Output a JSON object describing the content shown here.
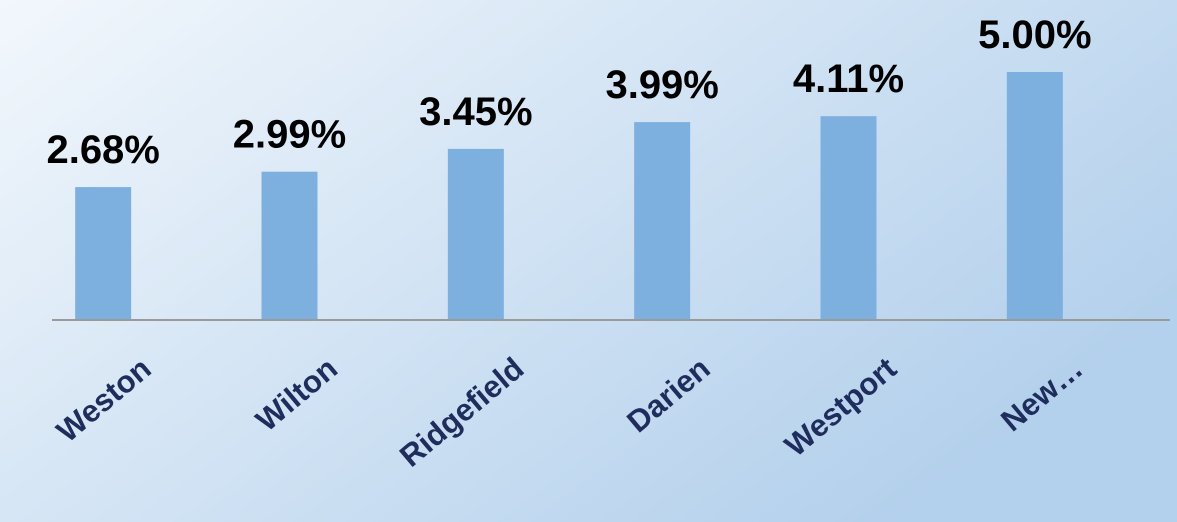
{
  "chart_data": {
    "type": "bar",
    "categories": [
      "Weston",
      "Wilton",
      "Ridgefield",
      "Darien",
      "Westport",
      "New…"
    ],
    "values": [
      2.68,
      2.99,
      3.45,
      3.99,
      4.11,
      5.0
    ],
    "value_labels": [
      "2.68%",
      "2.99%",
      "3.45%",
      "3.99%",
      "4.11%",
      "5.00%"
    ],
    "color": "#7eb0df",
    "ylim": [
      0,
      5
    ]
  }
}
